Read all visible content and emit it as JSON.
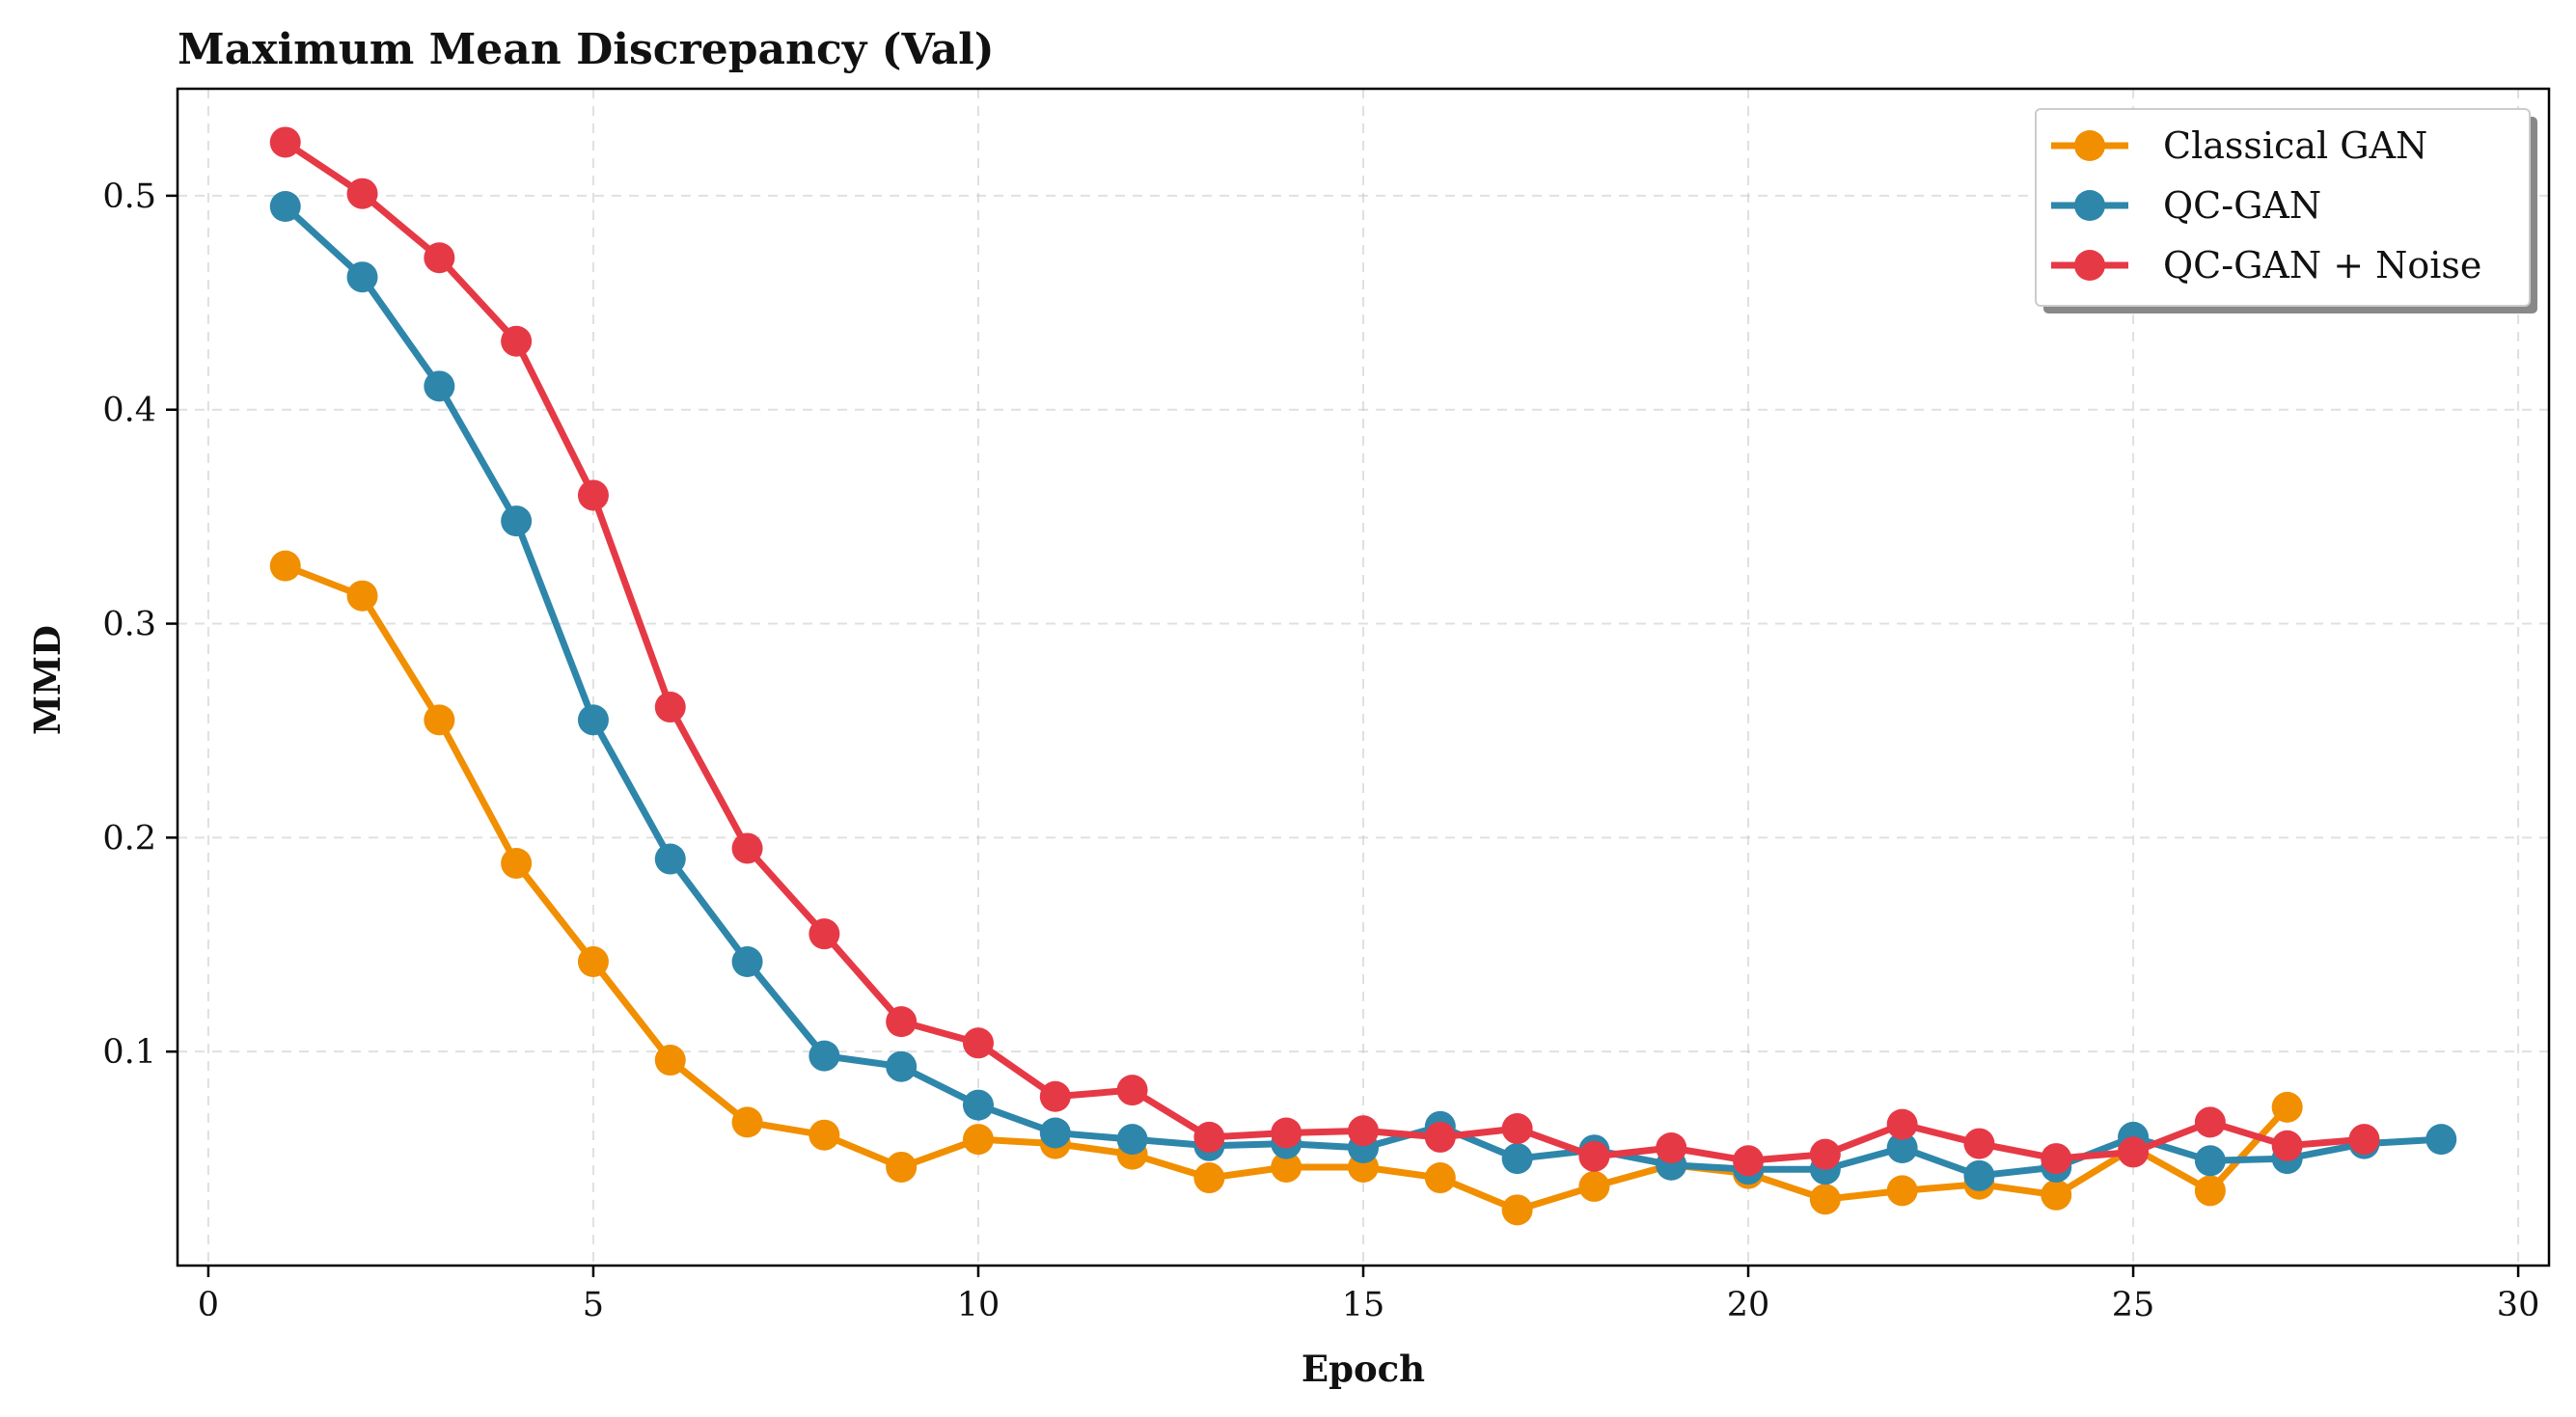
{
  "chart_data": {
    "type": "line",
    "title": "Maximum Mean Discrepancy (Val)",
    "xlabel": "Epoch",
    "ylabel": "MMD",
    "xlim": [
      -0.4,
      30.4
    ],
    "ylim": [
      0.0,
      0.55
    ],
    "xticks": [
      0,
      5,
      10,
      15,
      20,
      25,
      30
    ],
    "yticks": [
      0.1,
      0.2,
      0.3,
      0.4,
      0.5
    ],
    "grid": true,
    "legend_position": "top-right",
    "series": [
      {
        "name": "Classical GAN",
        "color": "#F18F01",
        "x": [
          1,
          2,
          3,
          4,
          5,
          6,
          7,
          8,
          9,
          10,
          11,
          12,
          13,
          14,
          15,
          16,
          17,
          18,
          19,
          20,
          21,
          22,
          23,
          24,
          25,
          26,
          27
        ],
        "y": [
          0.327,
          0.313,
          0.255,
          0.188,
          0.142,
          0.096,
          0.067,
          0.061,
          0.046,
          0.059,
          0.057,
          0.052,
          0.041,
          0.046,
          0.046,
          0.041,
          0.026,
          0.037,
          0.047,
          0.043,
          0.031,
          0.035,
          0.038,
          0.033,
          0.055,
          0.035,
          0.074
        ]
      },
      {
        "name": "QC-GAN",
        "color": "#2E86AB",
        "x": [
          1,
          2,
          3,
          4,
          5,
          6,
          7,
          8,
          9,
          10,
          11,
          12,
          13,
          14,
          15,
          16,
          17,
          18,
          19,
          20,
          21,
          22,
          23,
          24,
          25,
          26,
          27,
          28,
          29
        ],
        "y": [
          0.495,
          0.462,
          0.411,
          0.348,
          0.255,
          0.19,
          0.142,
          0.098,
          0.093,
          0.075,
          0.062,
          0.059,
          0.056,
          0.057,
          0.055,
          0.065,
          0.05,
          0.054,
          0.047,
          0.045,
          0.045,
          0.055,
          0.042,
          0.046,
          0.06,
          0.049,
          0.05,
          0.057,
          0.059
        ]
      },
      {
        "name": "QC-GAN + Noise",
        "color": "#E63946",
        "x": [
          1,
          2,
          3,
          4,
          5,
          6,
          7,
          8,
          9,
          10,
          11,
          12,
          13,
          14,
          15,
          16,
          17,
          18,
          19,
          20,
          21,
          22,
          23,
          24,
          25,
          26,
          27,
          28
        ],
        "y": [
          0.525,
          0.501,
          0.471,
          0.432,
          0.36,
          0.261,
          0.195,
          0.155,
          0.114,
          0.104,
          0.079,
          0.082,
          0.06,
          0.062,
          0.063,
          0.06,
          0.064,
          0.051,
          0.055,
          0.049,
          0.052,
          0.066,
          0.057,
          0.05,
          0.053,
          0.067,
          0.056,
          0.059
        ]
      }
    ]
  }
}
